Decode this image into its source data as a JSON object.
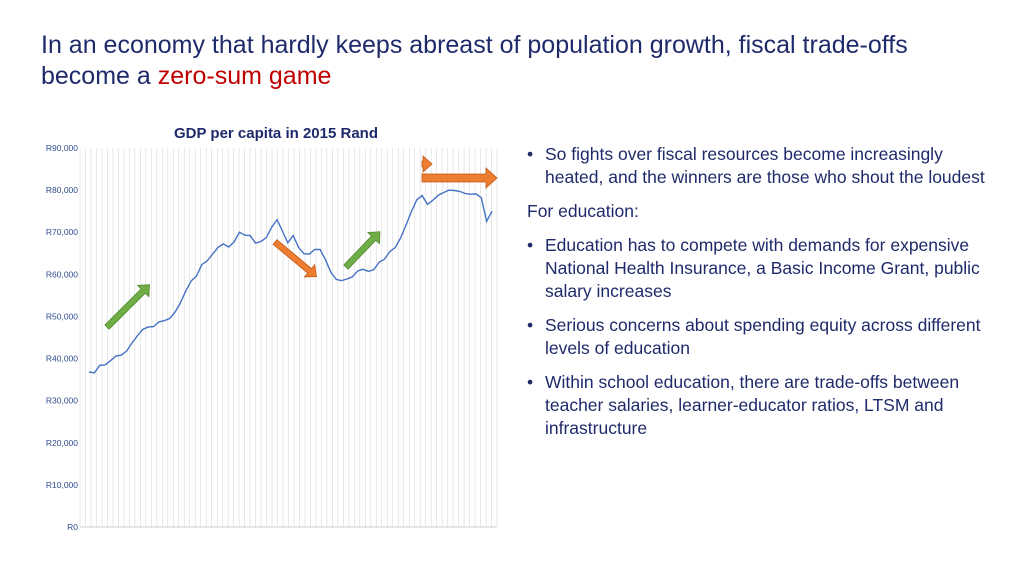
{
  "slide": {
    "title_main": "In an economy that hardly keeps abreast of population growth,  fiscal trade-offs become a ",
    "title_accent": "zero-sum game",
    "colors": {
      "title": "#1f2a6b",
      "accent": "#c00000",
      "line": "#4472c4",
      "up_arrow": "#70ad47",
      "down_arrow": "#ed7d31"
    }
  },
  "bullets": {
    "b1": "So fights over fiscal resources become increasingly heated, and the winners are those who shout the loudest",
    "heading": "For education:",
    "b2": "Education has to compete with demands for expensive National Health Insurance, a Basic Income Grant, public salary increases",
    "b3": "Serious concerns about spending equity across different levels of education",
    "b4": "Within school education, there are trade-offs between teacher salaries, learner-educator ratios, LTSM and infrastructure",
    "bullet_glyph": "•"
  },
  "chart_data": {
    "type": "line",
    "title": "GDP per capita in 2015 Rand",
    "ylim": [
      0,
      90000
    ],
    "ytick_labels": [
      "R0",
      "R10,000",
      "R20,000",
      "R30,000",
      "R40,000",
      "R50,000",
      "R60,000",
      "R70,000",
      "R80,000",
      "R90,000"
    ],
    "grid": "vertical gridlines",
    "series": [
      {
        "values": [
          36800,
          36600,
          38400,
          38500,
          39500,
          40600,
          40800,
          41800,
          43700,
          45400,
          46900,
          47500,
          47600,
          48700,
          49000,
          49500,
          51000,
          53200,
          56000,
          58400,
          59600,
          62300,
          63200,
          64800,
          66400,
          67200,
          66500,
          67700,
          70000,
          69300,
          69200,
          67400,
          67800,
          68700,
          71200,
          73000,
          70300,
          67500,
          69200,
          66400,
          64900,
          64800,
          65900,
          65900,
          63500,
          60500,
          58800,
          58500,
          58900,
          59400,
          60800,
          61200,
          60700,
          61100,
          62900,
          63600,
          65400,
          66400,
          68700,
          71700,
          74900,
          77700,
          78700,
          76600,
          77600,
          78800,
          79400,
          80000,
          79900,
          79700,
          79200,
          79000,
          79100,
          78200,
          72600,
          75000
        ]
      }
    ],
    "annotations": [
      "up-arrow",
      "down-arrow",
      "up-arrow",
      "down-arrow",
      "right-arrow"
    ]
  }
}
